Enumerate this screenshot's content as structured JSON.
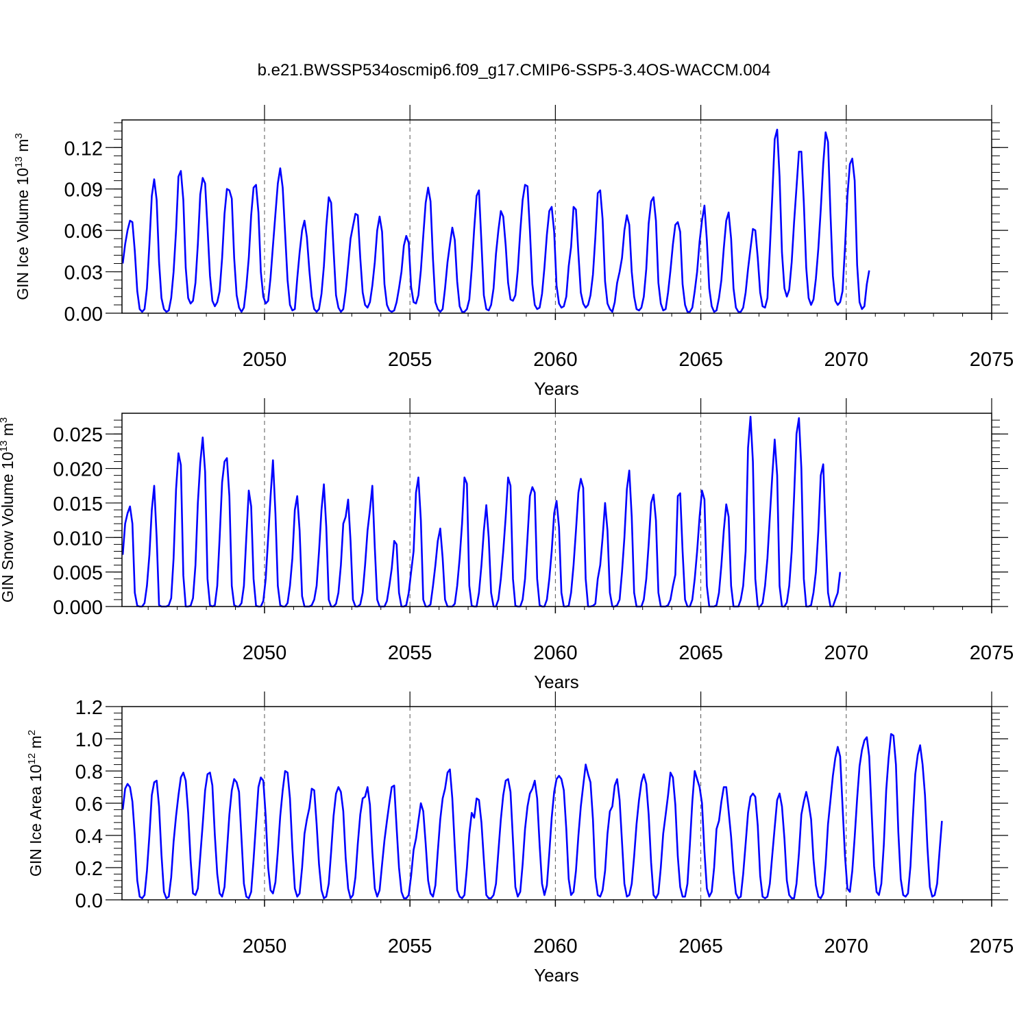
{
  "title": "b.e21.BWSSP534oscmip6.f09_g17.CMIP6-SSP5-3.4OS-WACCM.004",
  "colors": {
    "line": "#0000ff",
    "axis": "#000000",
    "grid": "#555555"
  },
  "chart_data": [
    {
      "type": "line",
      "ylabel": {
        "text": "GIN Ice Volume 10",
        "exp": "13",
        "unit": " m",
        "uexp": "3"
      },
      "xlabel": "Years",
      "xlim": [
        2045.1,
        2075
      ],
      "ylim": [
        0,
        0.14
      ],
      "xticks": [
        "2050",
        "2055",
        "2060",
        "2065",
        "2070",
        "2075"
      ],
      "yticks": [
        "0.00",
        "0.03",
        "0.06",
        "0.09",
        "0.12"
      ],
      "ytick_values": [
        0,
        0.03,
        0.06,
        0.09,
        0.12
      ],
      "grid": "vertical dashed at 5-year ticks",
      "start_year": 2045.125,
      "dt": 0.08333,
      "values": [
        0.036,
        0.05,
        0.06,
        0.067,
        0.066,
        0.045,
        0.016,
        0.003,
        0.001,
        0.003,
        0.018,
        0.05,
        0.085,
        0.097,
        0.082,
        0.037,
        0.011,
        0.003,
        0.001,
        0.002,
        0.011,
        0.03,
        0.06,
        0.099,
        0.103,
        0.082,
        0.033,
        0.011,
        0.007,
        0.009,
        0.022,
        0.05,
        0.086,
        0.098,
        0.094,
        0.062,
        0.027,
        0.009,
        0.005,
        0.008,
        0.016,
        0.04,
        0.072,
        0.09,
        0.089,
        0.083,
        0.04,
        0.013,
        0.004,
        0.001,
        0.004,
        0.019,
        0.04,
        0.071,
        0.091,
        0.093,
        0.073,
        0.03,
        0.012,
        0.007,
        0.009,
        0.026,
        0.049,
        0.072,
        0.094,
        0.105,
        0.091,
        0.058,
        0.024,
        0.006,
        0.002,
        0.003,
        0.025,
        0.044,
        0.06,
        0.067,
        0.055,
        0.031,
        0.012,
        0.003,
        0.001,
        0.003,
        0.014,
        0.034,
        0.063,
        0.084,
        0.08,
        0.046,
        0.013,
        0.004,
        0.001,
        0.003,
        0.016,
        0.035,
        0.054,
        0.063,
        0.072,
        0.071,
        0.04,
        0.015,
        0.006,
        0.004,
        0.008,
        0.02,
        0.037,
        0.06,
        0.07,
        0.059,
        0.021,
        0.006,
        0.002,
        0.001,
        0.002,
        0.008,
        0.018,
        0.03,
        0.049,
        0.056,
        0.051,
        0.019,
        0.008,
        0.007,
        0.013,
        0.031,
        0.056,
        0.08,
        0.091,
        0.081,
        0.039,
        0.008,
        0.003,
        0.001,
        0.003,
        0.018,
        0.037,
        0.05,
        0.062,
        0.053,
        0.023,
        0.005,
        0.001,
        0.001,
        0.003,
        0.01,
        0.032,
        0.061,
        0.085,
        0.089,
        0.051,
        0.013,
        0.003,
        0.002,
        0.006,
        0.018,
        0.043,
        0.06,
        0.074,
        0.07,
        0.049,
        0.022,
        0.01,
        0.009,
        0.013,
        0.031,
        0.059,
        0.082,
        0.093,
        0.092,
        0.06,
        0.021,
        0.006,
        0.003,
        0.004,
        0.014,
        0.033,
        0.057,
        0.074,
        0.077,
        0.059,
        0.02,
        0.007,
        0.004,
        0.005,
        0.012,
        0.034,
        0.048,
        0.077,
        0.075,
        0.043,
        0.015,
        0.007,
        0.004,
        0.006,
        0.013,
        0.028,
        0.055,
        0.087,
        0.089,
        0.068,
        0.023,
        0.007,
        0.003,
        0.001,
        0.008,
        0.022,
        0.03,
        0.04,
        0.06,
        0.071,
        0.064,
        0.03,
        0.012,
        0.003,
        0.002,
        0.004,
        0.012,
        0.032,
        0.065,
        0.081,
        0.084,
        0.067,
        0.022,
        0.007,
        0.002,
        0.003,
        0.015,
        0.031,
        0.05,
        0.064,
        0.066,
        0.059,
        0.021,
        0.006,
        0.001,
        0.001,
        0.004,
        0.016,
        0.03,
        0.052,
        0.067,
        0.078,
        0.053,
        0.018,
        0.005,
        0.001,
        0.002,
        0.011,
        0.024,
        0.047,
        0.067,
        0.073,
        0.054,
        0.018,
        0.004,
        0.001,
        0.001,
        0.004,
        0.015,
        0.032,
        0.047,
        0.061,
        0.06,
        0.04,
        0.015,
        0.005,
        0.004,
        0.011,
        0.046,
        0.085,
        0.126,
        0.133,
        0.099,
        0.044,
        0.018,
        0.012,
        0.017,
        0.037,
        0.066,
        0.091,
        0.117,
        0.117,
        0.08,
        0.033,
        0.011,
        0.006,
        0.01,
        0.025,
        0.047,
        0.075,
        0.108,
        0.131,
        0.124,
        0.072,
        0.027,
        0.009,
        0.006,
        0.008,
        0.016,
        0.048,
        0.085,
        0.108,
        0.112,
        0.096,
        0.035,
        0.008,
        0.003,
        0.005,
        0.021,
        0.031
      ]
    },
    {
      "type": "line",
      "ylabel": {
        "text": "GIN Snow Volume 10",
        "exp": "13",
        "unit": " m",
        "uexp": "3"
      },
      "xlabel": "Years",
      "xlim": [
        2045.1,
        2075
      ],
      "ylim": [
        0,
        0.028
      ],
      "xticks": [
        "2050",
        "2055",
        "2060",
        "2065",
        "2070",
        "2075"
      ],
      "yticks": [
        "0.000",
        "0.005",
        "0.010",
        "0.015",
        "0.020",
        "0.025"
      ],
      "ytick_values": [
        0,
        0.005,
        0.01,
        0.015,
        0.02,
        0.025
      ],
      "grid": "vertical dashed at 5-year ticks",
      "start_year": 2045.125,
      "dt": 0.08333,
      "values": [
        0.0075,
        0.012,
        0.0135,
        0.0145,
        0.012,
        0.002,
        0.0001,
        0.0,
        0.0,
        0.0005,
        0.003,
        0.0075,
        0.014,
        0.0175,
        0.01,
        0.0002,
        0.0,
        0.0,
        0.0,
        0.0002,
        0.0012,
        0.007,
        0.017,
        0.0222,
        0.0205,
        0.0045,
        0.0,
        0.0,
        0.0001,
        0.0012,
        0.006,
        0.015,
        0.0208,
        0.0245,
        0.0195,
        0.004,
        0.0002,
        0.0,
        0.0002,
        0.003,
        0.01,
        0.018,
        0.021,
        0.0215,
        0.016,
        0.003,
        0.0002,
        0.0,
        0.0,
        0.0005,
        0.003,
        0.01,
        0.0168,
        0.0145,
        0.004,
        0.0001,
        0.0,
        0.0,
        0.0008,
        0.004,
        0.01,
        0.016,
        0.0212,
        0.0135,
        0.003,
        0.0002,
        0.0,
        0.0,
        0.0005,
        0.003,
        0.007,
        0.014,
        0.016,
        0.011,
        0.0015,
        0.0,
        0.0,
        0.0,
        0.0002,
        0.001,
        0.003,
        0.008,
        0.014,
        0.0177,
        0.0115,
        0.001,
        0.0,
        0.0,
        0.0004,
        0.002,
        0.006,
        0.012,
        0.013,
        0.0155,
        0.0095,
        0.001,
        0.0,
        0.0,
        0.0003,
        0.002,
        0.006,
        0.011,
        0.014,
        0.0175,
        0.0085,
        0.001,
        0.0,
        0.0,
        0.0,
        0.0008,
        0.003,
        0.0055,
        0.0095,
        0.009,
        0.002,
        0.0,
        0.0,
        0.0002,
        0.002,
        0.005,
        0.008,
        0.0165,
        0.0187,
        0.0125,
        0.001,
        0.0,
        0.0,
        0.0003,
        0.003,
        0.006,
        0.0095,
        0.0113,
        0.007,
        0.001,
        0.0,
        0.0,
        0.0,
        0.0004,
        0.003,
        0.007,
        0.012,
        0.0187,
        0.0178,
        0.003,
        0.0001,
        0.0,
        0.0,
        0.002,
        0.006,
        0.011,
        0.0147,
        0.01,
        0.002,
        0.0,
        0.0,
        0.001,
        0.004,
        0.008,
        0.013,
        0.0187,
        0.0175,
        0.004,
        0.0001,
        0.0,
        0.0,
        0.001,
        0.004,
        0.01,
        0.016,
        0.0173,
        0.0165,
        0.004,
        0.0002,
        0.0,
        0.0,
        0.001,
        0.004,
        0.008,
        0.0135,
        0.0153,
        0.0115,
        0.002,
        0.0,
        0.0,
        0.0001,
        0.002,
        0.006,
        0.011,
        0.0165,
        0.0185,
        0.0172,
        0.004,
        0.0,
        0.0,
        0.0001,
        0.0004,
        0.004,
        0.006,
        0.01,
        0.015,
        0.011,
        0.002,
        0.0,
        0.0,
        0.0002,
        0.001,
        0.005,
        0.01,
        0.017,
        0.0197,
        0.013,
        0.002,
        0.0,
        0.0,
        0.0,
        0.001,
        0.004,
        0.009,
        0.015,
        0.0162,
        0.0125,
        0.002,
        0.0,
        0.0,
        0.0,
        0.0002,
        0.001,
        0.003,
        0.0046,
        0.016,
        0.0164,
        0.008,
        0.001,
        0.0,
        0.0,
        0.001,
        0.004,
        0.008,
        0.013,
        0.0168,
        0.0155,
        0.003,
        0.0,
        0.0,
        0.0,
        0.0002,
        0.002,
        0.006,
        0.011,
        0.0148,
        0.013,
        0.003,
        0.0,
        0.0,
        0.0,
        0.001,
        0.003,
        0.008,
        0.023,
        0.0275,
        0.021,
        0.004,
        0.0,
        0.0,
        0.0005,
        0.003,
        0.007,
        0.013,
        0.019,
        0.0242,
        0.019,
        0.003,
        0.0,
        0.0,
        0.0006,
        0.003,
        0.008,
        0.016,
        0.025,
        0.0273,
        0.02,
        0.004,
        0.0,
        0.0,
        0.0002,
        0.002,
        0.005,
        0.011,
        0.019,
        0.0206,
        0.011,
        0.002,
        0.0,
        0.0,
        0.001,
        0.002,
        0.005
      ]
    },
    {
      "type": "line",
      "ylabel": {
        "text": "GIN Ice Area 10",
        "exp": "12",
        "unit": " m",
        "uexp": "2"
      },
      "xlabel": "Years",
      "xlim": [
        2045.1,
        2075
      ],
      "ylim": [
        0,
        1.2
      ],
      "xticks": [
        "2050",
        "2055",
        "2060",
        "2065",
        "2070",
        "2075"
      ],
      "yticks": [
        "0.0",
        "0.2",
        "0.4",
        "0.6",
        "0.8",
        "1.0",
        "1.2"
      ],
      "ytick_values": [
        0,
        0.2,
        0.4,
        0.6,
        0.8,
        1.0,
        1.2
      ],
      "grid": "vertical dashed at 5-year ticks",
      "start_year": 2045.125,
      "dt": 0.08333,
      "values": [
        0.56,
        0.69,
        0.72,
        0.7,
        0.61,
        0.4,
        0.12,
        0.02,
        0.01,
        0.03,
        0.18,
        0.4,
        0.65,
        0.73,
        0.74,
        0.58,
        0.28,
        0.05,
        0.01,
        0.02,
        0.14,
        0.36,
        0.52,
        0.65,
        0.76,
        0.79,
        0.74,
        0.54,
        0.25,
        0.04,
        0.03,
        0.07,
        0.27,
        0.47,
        0.68,
        0.78,
        0.79,
        0.71,
        0.4,
        0.16,
        0.04,
        0.02,
        0.08,
        0.3,
        0.53,
        0.68,
        0.75,
        0.73,
        0.67,
        0.38,
        0.1,
        0.02,
        0.01,
        0.05,
        0.25,
        0.48,
        0.7,
        0.76,
        0.74,
        0.52,
        0.2,
        0.06,
        0.04,
        0.11,
        0.3,
        0.52,
        0.68,
        0.8,
        0.79,
        0.63,
        0.32,
        0.07,
        0.02,
        0.04,
        0.2,
        0.41,
        0.5,
        0.57,
        0.69,
        0.68,
        0.47,
        0.22,
        0.06,
        0.01,
        0.02,
        0.1,
        0.3,
        0.52,
        0.66,
        0.7,
        0.67,
        0.55,
        0.26,
        0.07,
        0.01,
        0.03,
        0.14,
        0.35,
        0.53,
        0.63,
        0.64,
        0.7,
        0.59,
        0.3,
        0.07,
        0.02,
        0.06,
        0.22,
        0.37,
        0.49,
        0.6,
        0.7,
        0.71,
        0.45,
        0.2,
        0.05,
        0.01,
        0.01,
        0.03,
        0.15,
        0.31,
        0.38,
        0.49,
        0.6,
        0.55,
        0.35,
        0.12,
        0.04,
        0.02,
        0.09,
        0.3,
        0.5,
        0.63,
        0.69,
        0.79,
        0.81,
        0.63,
        0.33,
        0.06,
        0.02,
        0.01,
        0.03,
        0.2,
        0.41,
        0.54,
        0.51,
        0.63,
        0.62,
        0.48,
        0.25,
        0.03,
        0.01,
        0.01,
        0.03,
        0.1,
        0.3,
        0.5,
        0.65,
        0.74,
        0.75,
        0.67,
        0.37,
        0.08,
        0.02,
        0.05,
        0.22,
        0.44,
        0.58,
        0.66,
        0.69,
        0.74,
        0.63,
        0.34,
        0.1,
        0.03,
        0.09,
        0.29,
        0.51,
        0.67,
        0.75,
        0.77,
        0.75,
        0.68,
        0.44,
        0.13,
        0.03,
        0.05,
        0.18,
        0.4,
        0.58,
        0.71,
        0.84,
        0.78,
        0.73,
        0.5,
        0.14,
        0.03,
        0.02,
        0.06,
        0.18,
        0.41,
        0.55,
        0.58,
        0.71,
        0.75,
        0.62,
        0.36,
        0.1,
        0.02,
        0.03,
        0.1,
        0.27,
        0.47,
        0.62,
        0.73,
        0.78,
        0.72,
        0.53,
        0.23,
        0.03,
        0.01,
        0.04,
        0.2,
        0.41,
        0.53,
        0.65,
        0.79,
        0.76,
        0.59,
        0.27,
        0.08,
        0.02,
        0.02,
        0.1,
        0.34,
        0.61,
        0.8,
        0.75,
        0.7,
        0.6,
        0.3,
        0.07,
        0.02,
        0.05,
        0.2,
        0.44,
        0.49,
        0.61,
        0.7,
        0.7,
        0.55,
        0.39,
        0.18,
        0.04,
        0.01,
        0.02,
        0.16,
        0.35,
        0.54,
        0.64,
        0.66,
        0.64,
        0.46,
        0.15,
        0.02,
        0.01,
        0.02,
        0.1,
        0.28,
        0.45,
        0.62,
        0.66,
        0.58,
        0.38,
        0.12,
        0.03,
        0.01,
        0.01,
        0.1,
        0.29,
        0.53,
        0.61,
        0.67,
        0.6,
        0.5,
        0.25,
        0.09,
        0.02,
        0.01,
        0.04,
        0.22,
        0.47,
        0.62,
        0.77,
        0.88,
        0.95,
        0.89,
        0.58,
        0.27,
        0.07,
        0.05,
        0.18,
        0.39,
        0.63,
        0.83,
        0.93,
        0.99,
        1.01,
        0.89,
        0.54,
        0.21,
        0.05,
        0.03,
        0.1,
        0.34,
        0.68,
        0.88,
        1.03,
        1.02,
        0.84,
        0.42,
        0.13,
        0.03,
        0.02,
        0.04,
        0.21,
        0.51,
        0.78,
        0.9,
        0.96,
        0.84,
        0.65,
        0.33,
        0.08,
        0.02,
        0.03,
        0.1,
        0.3,
        0.49
      ]
    }
  ]
}
